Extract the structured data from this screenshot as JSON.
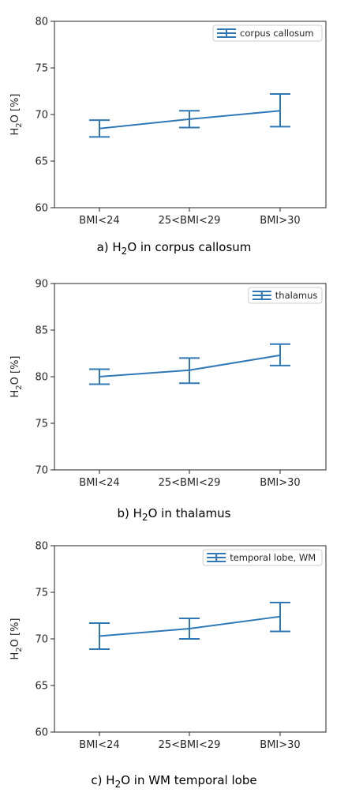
{
  "colors": {
    "series": "#2f78b5",
    "axis": "#262626",
    "legend_border": "#cccccc"
  },
  "chart_data": [
    {
      "type": "line",
      "error_bars": true,
      "categories": [
        "BMI<24",
        "25<BMI<29",
        "BMI>30"
      ],
      "series": [
        {
          "name": "corpus callosum",
          "values": [
            68.5,
            69.5,
            70.4
          ],
          "err_low": [
            67.6,
            68.6,
            68.7
          ],
          "err_high": [
            69.4,
            70.4,
            72.2
          ]
        }
      ],
      "ylabel_main": "H",
      "ylabel_sub": "2",
      "ylabel_rest": "O [%]",
      "ylim": [
        60,
        80
      ],
      "yticks": [
        "60",
        "65",
        "70",
        "75",
        "80"
      ],
      "legend_position": "top-right",
      "grid": false,
      "caption": {
        "prefix": "a) H",
        "sub": "2",
        "suffix": "O in corpus callosum"
      }
    },
    {
      "type": "line",
      "error_bars": true,
      "categories": [
        "BMI<24",
        "25<BMI<29",
        "BMI>30"
      ],
      "series": [
        {
          "name": "thalamus",
          "values": [
            80.0,
            80.7,
            82.3
          ],
          "err_low": [
            79.2,
            79.3,
            81.2
          ],
          "err_high": [
            80.8,
            82.0,
            83.5
          ]
        }
      ],
      "ylabel_main": "H",
      "ylabel_sub": "2",
      "ylabel_rest": "O [%]",
      "ylim": [
        70,
        90
      ],
      "yticks": [
        "70",
        "75",
        "80",
        "85",
        "90"
      ],
      "legend_position": "top-right",
      "grid": false,
      "caption": {
        "prefix": "b) H",
        "sub": "2",
        "suffix": "O in thalamus"
      }
    },
    {
      "type": "line",
      "error_bars": true,
      "categories": [
        "BMI<24",
        "25<BMI<29",
        "BMI>30"
      ],
      "series": [
        {
          "name": "temporal lobe, WM",
          "values": [
            70.3,
            71.1,
            72.4
          ],
          "err_low": [
            68.9,
            70.0,
            70.8
          ],
          "err_high": [
            71.7,
            72.2,
            73.9
          ]
        }
      ],
      "ylabel_main": "H",
      "ylabel_sub": "2",
      "ylabel_rest": "O [%]",
      "ylim": [
        60,
        80
      ],
      "yticks": [
        "60",
        "65",
        "70",
        "75",
        "80"
      ],
      "legend_position": "top-right",
      "grid": false,
      "caption": {
        "prefix": "c) H",
        "sub": "2",
        "suffix": "O in WM temporal lobe"
      }
    }
  ]
}
